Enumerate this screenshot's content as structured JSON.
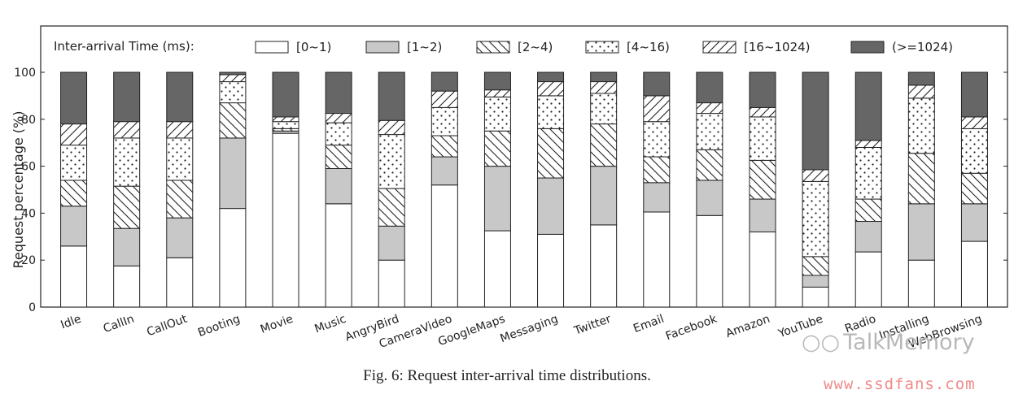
{
  "chart_data": {
    "type": "bar",
    "stacked": true,
    "ylabel": "Request percentage (%)",
    "xlabel": "",
    "ylim": [
      0,
      100
    ],
    "yticks": [
      0,
      20,
      40,
      60,
      80,
      100
    ],
    "grid": false,
    "legend_title": "Inter-arrival Time (ms):",
    "legend_position": "top",
    "categories": [
      "Idle",
      "CallIn",
      "CallOut",
      "Booting",
      "Movie",
      "Music",
      "AngryBird",
      "CameraVideo",
      "GoogleMaps",
      "Messaging",
      "Twitter",
      "Email",
      "Facebook",
      "Amazon",
      "YouTube",
      "Radio",
      "Installing",
      "WebBrowsing"
    ],
    "series": [
      {
        "name": "[0~1)",
        "pattern": "white",
        "values": [
          26,
          17.5,
          21,
          42,
          74,
          44,
          20,
          52,
          32.5,
          31,
          35,
          40.5,
          39,
          32,
          8.5,
          23.5,
          20,
          28
        ]
      },
      {
        "name": "[1~2)",
        "pattern": "gray",
        "values": [
          17,
          16,
          17,
          30,
          1,
          15,
          14.5,
          12,
          27.5,
          24,
          25,
          12.5,
          15,
          14,
          5,
          13,
          24,
          16
        ]
      },
      {
        "name": "[2~4)",
        "pattern": "backslash",
        "values": [
          11,
          18,
          16,
          15,
          1,
          10,
          16,
          9,
          15,
          21,
          18,
          11,
          13,
          16.5,
          8,
          9.5,
          21.5,
          13
        ]
      },
      {
        "name": "[4~16)",
        "pattern": "dots",
        "values": [
          15,
          20.5,
          18,
          9,
          3,
          9.5,
          23,
          12,
          14.5,
          14,
          13,
          15,
          15.5,
          18.5,
          32,
          22,
          23.5,
          19
        ]
      },
      {
        "name": "[16~1024)",
        "pattern": "slash",
        "values": [
          9,
          7,
          7,
          3,
          2,
          4,
          6,
          7,
          3,
          6,
          5,
          11,
          4.5,
          4,
          5,
          3,
          5.5,
          5
        ]
      },
      {
        "name": "(>=1024)",
        "pattern": "dark",
        "values": [
          22,
          21,
          21,
          1,
          19,
          17.5,
          20.5,
          8,
          7.5,
          4,
          4,
          10,
          13,
          15,
          41.5,
          29,
          5.5,
          19
        ]
      }
    ],
    "caption": "Fig. 6: Request inter-arrival time distributions."
  },
  "watermarks": {
    "brand": "TalkMemory",
    "url": "www.ssdfans.com"
  }
}
